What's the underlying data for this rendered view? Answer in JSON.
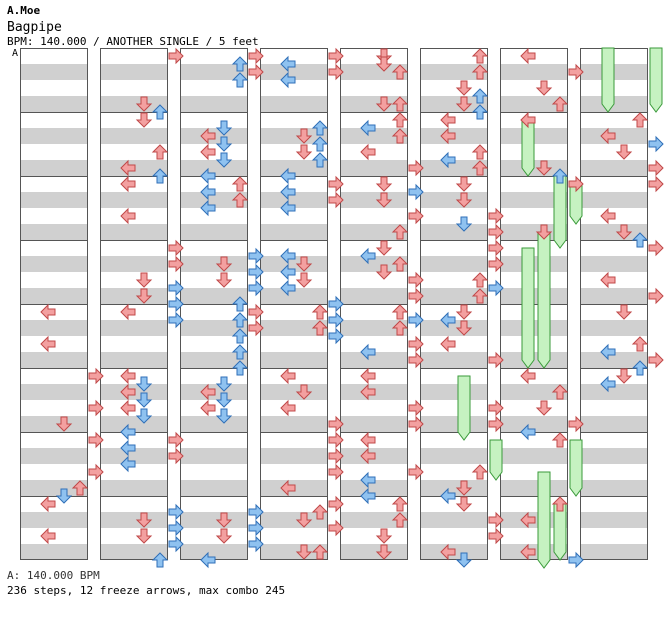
{
  "header": {
    "artist": "A.Moe",
    "title": "Bagpipe",
    "info": "BPM: 140.000 / ANOTHER SINGLE / 5 feet",
    "bpm_marker": "A"
  },
  "footer": {
    "bpm_legend": "A: 140.000 BPM",
    "stats": "236 steps, 12 freeze arrows, max combo 245"
  },
  "chart_data": {
    "type": "step-chart",
    "mode": "ANOTHER SINGLE",
    "bpm": 140.0,
    "difficulty_feet": 5,
    "steps": 236,
    "freeze_arrows": 12,
    "max_combo": 245,
    "lane_order": [
      "left",
      "down",
      "up",
      "right"
    ],
    "colors": {
      "quarter": "#f3a0a0",
      "eighth": "#8fc2f0",
      "freeze": "#c6f2c1",
      "stripe": "#d0d0d0"
    }
  }
}
